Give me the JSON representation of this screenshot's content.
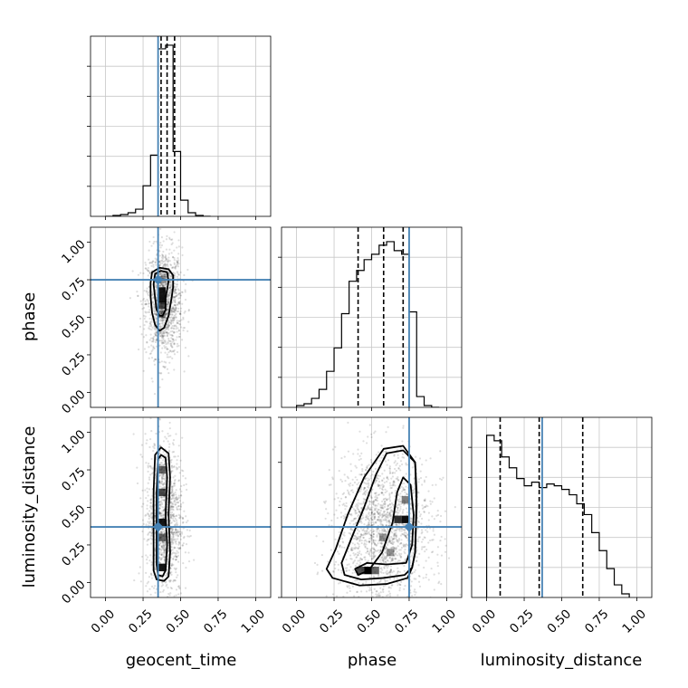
{
  "chart_data": {
    "type": "corner",
    "parameters": [
      "geocent_time",
      "phase",
      "luminosity_distance"
    ],
    "axis_range": [
      -0.1,
      1.1
    ],
    "ticks": [
      0.0,
      0.25,
      0.5,
      0.75,
      1.0
    ],
    "tick_labels": [
      "0.00",
      "0.25",
      "0.50",
      "0.75",
      "1.00"
    ],
    "grid": true,
    "colors": {
      "truth": "#4682b4",
      "hist": "#000000",
      "grid": "#c8c8c8",
      "axes": "#000000",
      "scatter": "#000000",
      "density": "#000000"
    },
    "truths": {
      "geocent_time": 0.35,
      "phase": 0.75,
      "luminosity_distance": 0.37
    },
    "quantiles": {
      "geocent_time": [
        0.37,
        0.41,
        0.46
      ],
      "phase": [
        0.41,
        0.58,
        0.71
      ],
      "luminosity_distance": [
        0.09,
        0.35,
        0.64
      ]
    },
    "histograms": {
      "geocent_time": {
        "bin_edges": [
          0.0,
          0.05,
          0.1,
          0.15,
          0.2,
          0.25,
          0.3,
          0.35,
          0.4,
          0.45,
          0.5,
          0.55,
          0.6,
          0.65,
          0.7
        ],
        "values": [
          0,
          0.005,
          0.01,
          0.02,
          0.04,
          0.17,
          0.34,
          0.93,
          0.95,
          0.36,
          0.09,
          0.02,
          0.005,
          0
        ]
      },
      "phase": {
        "bin_edges": [
          0.0,
          0.05,
          0.1,
          0.15,
          0.2,
          0.25,
          0.3,
          0.35,
          0.4,
          0.45,
          0.5,
          0.55,
          0.6,
          0.65,
          0.7,
          0.75,
          0.8,
          0.85,
          0.9,
          0.95
        ],
        "values": [
          0.01,
          0.02,
          0.05,
          0.1,
          0.2,
          0.33,
          0.52,
          0.7,
          0.76,
          0.82,
          0.85,
          0.9,
          0.92,
          0.87,
          0.85,
          0.53,
          0.06,
          0.01,
          0
        ]
      },
      "luminosity_distance": {
        "bin_edges": [
          0.0,
          0.05,
          0.1,
          0.15,
          0.2,
          0.25,
          0.3,
          0.35,
          0.4,
          0.45,
          0.5,
          0.55,
          0.6,
          0.65,
          0.7,
          0.75,
          0.8,
          0.85,
          0.9,
          0.95
        ],
        "values": [
          0.9,
          0.87,
          0.78,
          0.72,
          0.66,
          0.62,
          0.64,
          0.61,
          0.63,
          0.62,
          0.6,
          0.57,
          0.52,
          0.46,
          0.36,
          0.26,
          0.16,
          0.07,
          0.02
        ]
      }
    },
    "pairs": [
      {
        "x": "geocent_time",
        "y": "phase",
        "contours": [
          [
            [
              0.4,
              0.63
            ],
            [
              0.42,
              0.74
            ],
            [
              0.41,
              0.8
            ],
            [
              0.37,
              0.81
            ],
            [
              0.33,
              0.79
            ],
            [
              0.32,
              0.72
            ],
            [
              0.33,
              0.63
            ],
            [
              0.34,
              0.55
            ],
            [
              0.36,
              0.51
            ],
            [
              0.38,
              0.51
            ],
            [
              0.4,
              0.55
            ]
          ],
          [
            [
              0.44,
              0.63
            ],
            [
              0.45,
              0.7
            ],
            [
              0.45,
              0.78
            ],
            [
              0.42,
              0.82
            ],
            [
              0.36,
              0.83
            ],
            [
              0.31,
              0.8
            ],
            [
              0.3,
              0.73
            ],
            [
              0.3,
              0.64
            ],
            [
              0.31,
              0.53
            ],
            [
              0.33,
              0.45
            ],
            [
              0.36,
              0.41
            ],
            [
              0.39,
              0.43
            ],
            [
              0.42,
              0.51
            ]
          ]
        ],
        "density": [
          {
            "x": 0.375,
            "y": 0.75,
            "w": 0.05,
            "h": 0.05,
            "alpha": 0.35
          },
          {
            "x": 0.375,
            "y": 0.65,
            "w": 0.05,
            "h": 0.1,
            "alpha": 0.9
          },
          {
            "x": 0.375,
            "y": 0.58,
            "w": 0.05,
            "h": 0.05,
            "alpha": 0.7
          },
          {
            "x": 0.375,
            "y": 0.52,
            "w": 0.05,
            "h": 0.05,
            "alpha": 0.4
          }
        ],
        "cloud": {
          "cx": 0.39,
          "cy": 0.6,
          "sx": 0.06,
          "sy": 0.18,
          "n": 1300
        }
      },
      {
        "x": "geocent_time",
        "y": "luminosity_distance",
        "contours": [
          [
            [
              0.4,
              0.45
            ],
            [
              0.41,
              0.7
            ],
            [
              0.4,
              0.83
            ],
            [
              0.37,
              0.85
            ],
            [
              0.35,
              0.82
            ],
            [
              0.34,
              0.6
            ],
            [
              0.34,
              0.3
            ],
            [
              0.34,
              0.12
            ],
            [
              0.35,
              0.05
            ],
            [
              0.38,
              0.04
            ],
            [
              0.4,
              0.08
            ],
            [
              0.41,
              0.25
            ]
          ],
          [
            [
              0.42,
              0.45
            ],
            [
              0.43,
              0.7
            ],
            [
              0.42,
              0.86
            ],
            [
              0.37,
              0.9
            ],
            [
              0.33,
              0.85
            ],
            [
              0.32,
              0.6
            ],
            [
              0.32,
              0.3
            ],
            [
              0.32,
              0.08
            ],
            [
              0.34,
              0.02
            ],
            [
              0.39,
              0.01
            ],
            [
              0.42,
              0.04
            ],
            [
              0.43,
              0.2
            ]
          ]
        ],
        "density": [
          {
            "x": 0.375,
            "y": 0.75,
            "w": 0.05,
            "h": 0.05,
            "alpha": 0.6
          },
          {
            "x": 0.375,
            "y": 0.6,
            "w": 0.05,
            "h": 0.05,
            "alpha": 0.7
          },
          {
            "x": 0.375,
            "y": 0.4,
            "w": 0.05,
            "h": 0.05,
            "alpha": 0.9
          },
          {
            "x": 0.375,
            "y": 0.3,
            "w": 0.05,
            "h": 0.05,
            "alpha": 0.6
          },
          {
            "x": 0.375,
            "y": 0.1,
            "w": 0.05,
            "h": 0.05,
            "alpha": 0.9
          }
        ],
        "cloud": {
          "cx": 0.39,
          "cy": 0.42,
          "sx": 0.06,
          "sy": 0.27,
          "n": 1300
        }
      },
      {
        "x": "phase",
        "y": "luminosity_distance",
        "contours": [
          [
            [
              0.77,
              0.25
            ],
            [
              0.78,
              0.45
            ],
            [
              0.76,
              0.65
            ],
            [
              0.71,
              0.7
            ],
            [
              0.67,
              0.6
            ],
            [
              0.64,
              0.4
            ],
            [
              0.57,
              0.2
            ],
            [
              0.48,
              0.08
            ],
            [
              0.41,
              0.05
            ],
            [
              0.39,
              0.09
            ],
            [
              0.47,
              0.13
            ],
            [
              0.6,
              0.12
            ],
            [
              0.73,
              0.13
            ]
          ],
          [
            [
              0.79,
              0.2
            ],
            [
              0.8,
              0.5
            ],
            [
              0.79,
              0.8
            ],
            [
              0.71,
              0.88
            ],
            [
              0.6,
              0.86
            ],
            [
              0.53,
              0.72
            ],
            [
              0.45,
              0.5
            ],
            [
              0.36,
              0.28
            ],
            [
              0.3,
              0.13
            ],
            [
              0.32,
              0.05
            ],
            [
              0.43,
              0.02
            ],
            [
              0.58,
              0.03
            ],
            [
              0.72,
              0.05
            ],
            [
              0.77,
              0.1
            ]
          ],
          [
            [
              0.79,
              0.2
            ],
            [
              0.8,
              0.6
            ],
            [
              0.79,
              0.8
            ],
            [
              0.71,
              0.91
            ],
            [
              0.58,
              0.89
            ],
            [
              0.45,
              0.7
            ],
            [
              0.34,
              0.45
            ],
            [
              0.26,
              0.22
            ],
            [
              0.2,
              0.09
            ],
            [
              0.24,
              0.03
            ],
            [
              0.42,
              -0.02
            ],
            [
              0.6,
              -0.01
            ],
            [
              0.74,
              0.03
            ],
            [
              0.77,
              0.1
            ]
          ]
        ],
        "density": [
          {
            "x": 0.475,
            "y": 0.08,
            "w": 0.05,
            "h": 0.05,
            "alpha": 1.0
          },
          {
            "x": 0.425,
            "y": 0.08,
            "w": 0.05,
            "h": 0.05,
            "alpha": 0.7
          },
          {
            "x": 0.525,
            "y": 0.08,
            "w": 0.05,
            "h": 0.05,
            "alpha": 0.6
          },
          {
            "x": 0.675,
            "y": 0.42,
            "w": 0.05,
            "h": 0.05,
            "alpha": 0.8
          },
          {
            "x": 0.725,
            "y": 0.42,
            "w": 0.05,
            "h": 0.05,
            "alpha": 0.95
          },
          {
            "x": 0.725,
            "y": 0.55,
            "w": 0.05,
            "h": 0.05,
            "alpha": 0.5
          },
          {
            "x": 0.575,
            "y": 0.3,
            "w": 0.05,
            "h": 0.05,
            "alpha": 0.4
          },
          {
            "x": 0.625,
            "y": 0.2,
            "w": 0.05,
            "h": 0.05,
            "alpha": 0.4
          }
        ],
        "cloud": {
          "cx": 0.58,
          "cy": 0.35,
          "sx": 0.16,
          "sy": 0.25,
          "n": 1800
        }
      }
    ]
  }
}
